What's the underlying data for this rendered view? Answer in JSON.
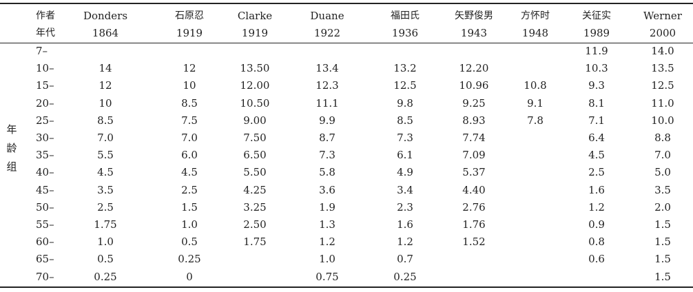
{
  "header": {
    "author_label": "作者",
    "year_label": "年代",
    "columns": [
      {
        "author": "Donders",
        "year": "1864"
      },
      {
        "author": "石原忍",
        "year": "1919"
      },
      {
        "author": "Clarke",
        "year": "1919"
      },
      {
        "author": "Duane",
        "year": "1922"
      },
      {
        "author": "福田氏",
        "year": "1936"
      },
      {
        "author": "矢野俊男",
        "year": "1943"
      },
      {
        "author": "方怀时",
        "year": "1948"
      },
      {
        "author": "关征实",
        "year": "1989"
      },
      {
        "author": "Werner",
        "year": "2000"
      }
    ]
  },
  "side_label": [
    "年",
    "龄",
    "组"
  ],
  "rows": [
    {
      "age": "7–",
      "cells": [
        "",
        "",
        "",
        "",
        "",
        "",
        "",
        "11.9",
        "14.0"
      ]
    },
    {
      "age": "10–",
      "cells": [
        "14",
        "12",
        "13.50",
        "13.4",
        "13.2",
        "12.20",
        "",
        "10.3",
        "13.5"
      ]
    },
    {
      "age": "15–",
      "cells": [
        "12",
        "10",
        "12.00",
        "12.3",
        "12.5",
        "10.96",
        "10.8",
        "9.3",
        "12.5"
      ]
    },
    {
      "age": "20–",
      "cells": [
        "10",
        "8.5",
        "10.50",
        "11.1",
        "9.8",
        "9.25",
        "9.1",
        "8.1",
        "11.0"
      ]
    },
    {
      "age": "25–",
      "cells": [
        "8.5",
        "7.5",
        "9.00",
        "9.9",
        "8.5",
        "8.93",
        "7.8",
        "7.1",
        "10.0"
      ]
    },
    {
      "age": "30–",
      "cells": [
        "7.0",
        "7.0",
        "7.50",
        "8.7",
        "7.3",
        "7.74",
        "",
        "6.4",
        "8.8"
      ]
    },
    {
      "age": "35–",
      "cells": [
        "5.5",
        "6.0",
        "6.50",
        "7.3",
        "6.1",
        "7.09",
        "",
        "4.5",
        "7.0"
      ]
    },
    {
      "age": "40–",
      "cells": [
        "4.5",
        "4.5",
        "5.50",
        "5.8",
        "4.9",
        "5.37",
        "",
        "2.5",
        "5.0"
      ]
    },
    {
      "age": "45–",
      "cells": [
        "3.5",
        "2.5",
        "4.25",
        "3.6",
        "3.4",
        "4.40",
        "",
        "1.6",
        "3.5"
      ]
    },
    {
      "age": "50–",
      "cells": [
        "2.5",
        "1.5",
        "3.25",
        "1.9",
        "2.3",
        "2.76",
        "",
        "1.2",
        "2.0"
      ]
    },
    {
      "age": "55–",
      "cells": [
        "1.75",
        "1.0",
        "2.50",
        "1.3",
        "1.6",
        "1.76",
        "",
        "0.9",
        "1.5"
      ]
    },
    {
      "age": "60–",
      "cells": [
        "1.0",
        "0.5",
        "1.75",
        "1.2",
        "1.2",
        "1.52",
        "",
        "0.8",
        "1.5"
      ]
    },
    {
      "age": "65–",
      "cells": [
        "0.5",
        "0.25",
        "",
        "1.0",
        "0.7",
        "",
        "",
        "0.6",
        "1.5"
      ]
    },
    {
      "age": "70–",
      "cells": [
        "0.25",
        "0",
        "",
        "0.75",
        "0.25",
        "",
        "",
        "",
        "1.5"
      ]
    }
  ]
}
